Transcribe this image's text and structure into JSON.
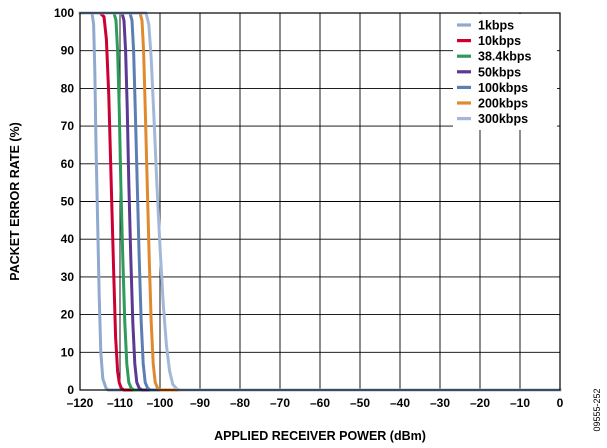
{
  "chart_data": {
    "type": "line",
    "xlabel": "APPLIED RECEIVER POWER (dBm)",
    "ylabel": "PACKET ERROR RATE (%)",
    "xlim": [
      -120,
      0
    ],
    "ylim": [
      0,
      100
    ],
    "xticks": [
      -120,
      -110,
      -100,
      -90,
      -80,
      -70,
      -60,
      -50,
      -40,
      -30,
      -20,
      -10,
      0
    ],
    "xtick_labels": [
      "–120",
      "–110",
      "–100",
      "–90",
      "–80",
      "–70",
      "–60",
      "–50",
      "–40",
      "–30",
      "–20",
      "–10",
      "0"
    ],
    "yticks": [
      0,
      10,
      20,
      30,
      40,
      50,
      60,
      70,
      80,
      90,
      100
    ],
    "ytick_labels": [
      "0",
      "10",
      "20",
      "30",
      "40",
      "50",
      "60",
      "70",
      "80",
      "90",
      "100"
    ],
    "grid": true,
    "legend_position": "top-right",
    "figure_id": "09555-252",
    "series": [
      {
        "name": "1kbps",
        "color": "#8fa9cf",
        "x": [
          -120,
          -117,
          -116.6,
          -116.3,
          -116,
          -115.6,
          -115.2,
          -114.8,
          -114.3,
          -113.5,
          -113,
          -112,
          0
        ],
        "y": [
          100,
          100,
          97,
          85,
          65,
          45,
          25,
          10,
          3,
          0.5,
          0,
          0,
          0
        ]
      },
      {
        "name": "10kbps",
        "color": "#cc0033",
        "x": [
          -120,
          -115,
          -114,
          -113.4,
          -112.8,
          -112.2,
          -111.6,
          -111.1,
          -110.6,
          -110.2,
          -109.7,
          -109,
          0
        ],
        "y": [
          100,
          100,
          99,
          93,
          78,
          55,
          32,
          14,
          5,
          2,
          0.5,
          0,
          0
        ]
      },
      {
        "name": "38.4kbps",
        "color": "#2e9a5c",
        "x": [
          -120,
          -111.5,
          -111,
          -110.6,
          -110.2,
          -109.8,
          -109.3,
          -108.8,
          -108.3,
          -107.8,
          -107.2,
          -106.5,
          0
        ],
        "y": [
          100,
          100,
          98,
          90,
          75,
          55,
          35,
          18,
          7,
          2,
          0.5,
          0,
          0
        ]
      },
      {
        "name": "50kbps",
        "color": "#5a3a93",
        "x": [
          -120,
          -109.5,
          -109,
          -108.6,
          -108.2,
          -107.8,
          -107.3,
          -106.8,
          -106.3,
          -105.8,
          -105.2,
          -104.5,
          0
        ],
        "y": [
          100,
          100,
          98,
          90,
          75,
          55,
          35,
          18,
          7,
          2,
          0.5,
          0,
          0
        ]
      },
      {
        "name": "100kbps",
        "color": "#5b7fb4",
        "x": [
          -120,
          -107.5,
          -107,
          -106.6,
          -106.2,
          -105.7,
          -105.2,
          -104.7,
          -104.2,
          -103.7,
          -103.1,
          -102.4,
          0
        ],
        "y": [
          100,
          100,
          98,
          90,
          75,
          55,
          35,
          18,
          7,
          2,
          0.5,
          0,
          0
        ]
      },
      {
        "name": "200kbps",
        "color": "#e08a2e",
        "x": [
          -120,
          -105,
          -104.5,
          -104.1,
          -103.7,
          -103.2,
          -102.7,
          -102.2,
          -101.7,
          -101.2,
          -100.6,
          -99.8,
          0
        ],
        "y": [
          100,
          100,
          98,
          90,
          75,
          55,
          35,
          18,
          7,
          2,
          0.5,
          0,
          0
        ]
      },
      {
        "name": "300kbps",
        "color": "#a3b8d8",
        "x": [
          -120,
          -103.5,
          -102.8,
          -102.2,
          -101.5,
          -100.8,
          -100,
          -99.2,
          -98.4,
          -97.6,
          -96.8,
          -95.8,
          -95,
          0
        ],
        "y": [
          100,
          100,
          97,
          88,
          72,
          55,
          38,
          23,
          12,
          5,
          1.5,
          0.3,
          0,
          0
        ]
      }
    ]
  }
}
